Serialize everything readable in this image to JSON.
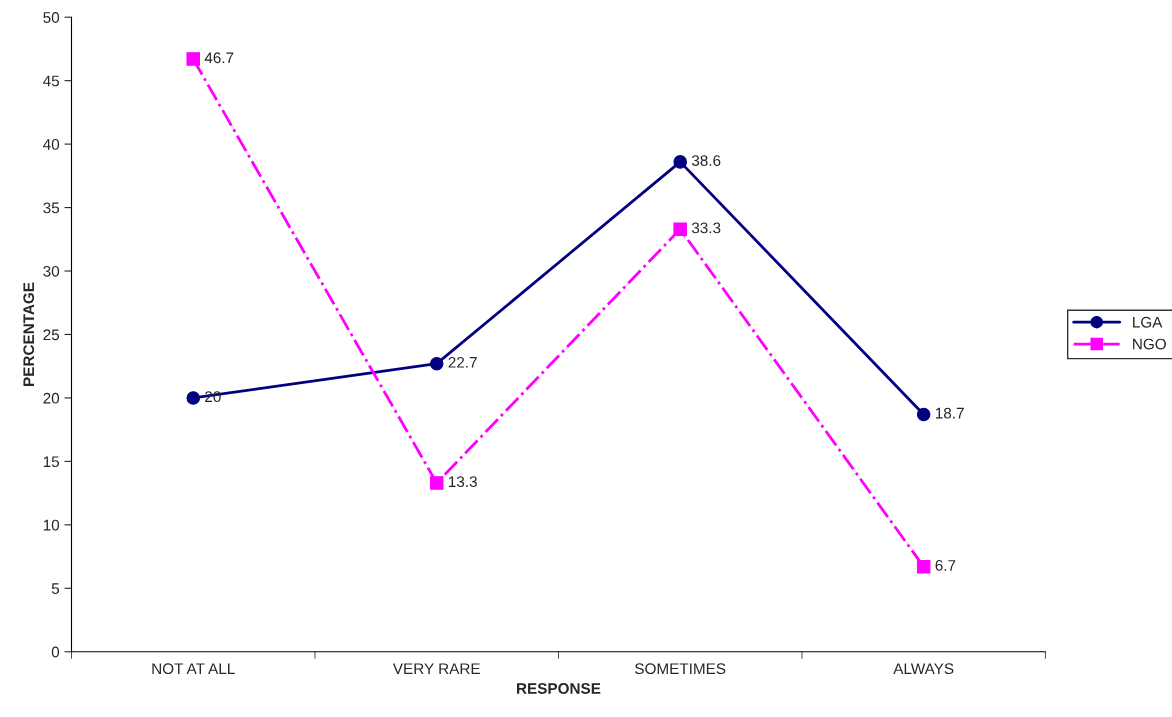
{
  "chart_data": {
    "type": "line",
    "xlabel": "RESPONSE",
    "ylabel": "PERCENTAGE",
    "categories": [
      "NOT AT ALL",
      "VERY RARE",
      "SOMETIMES",
      "ALWAYS"
    ],
    "series": [
      {
        "name": "LGA",
        "color": "#000080",
        "values": [
          20,
          22.7,
          38.6,
          18.7
        ],
        "marker": "circle",
        "line_style": "solid"
      },
      {
        "name": "NGO",
        "color": "#ff00ff",
        "values": [
          46.7,
          13.3,
          33.3,
          6.7
        ],
        "marker": "square",
        "line_style": "dashdot"
      }
    ],
    "ylim": [
      0,
      50
    ],
    "yticks": [
      0,
      5,
      10,
      15,
      20,
      25,
      30,
      35,
      40,
      45,
      50
    ],
    "grid": false,
    "legend": "right",
    "data_labels": true
  }
}
